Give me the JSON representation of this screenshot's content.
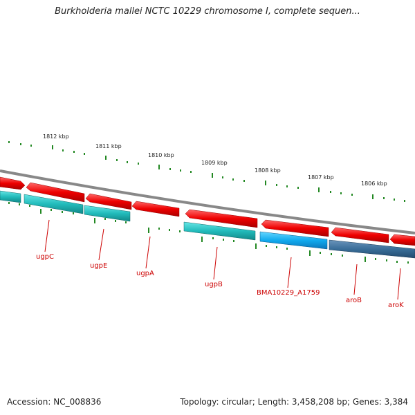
{
  "title": "Burkholderia mallei NCTC 10229 chromosome I, complete sequen...",
  "footer": {
    "accession": "Accession: NC_008836",
    "stats": "Topology: circular; Length: 3,458,208 bp; Genes: 3,384"
  },
  "scale": {
    "unit": "kbp",
    "labels": [
      "1812 kbp",
      "1811 kbp",
      "1810 kbp",
      "1809 kbp",
      "1808 kbp",
      "1807 kbp",
      "1806 kbp"
    ]
  },
  "genes": {
    "labels": [
      "ugpC",
      "ugpE",
      "ugpA",
      "ugpB",
      "BMA10229_A1759",
      "aroB",
      "aroK"
    ]
  },
  "colors": {
    "forward_feature": "#ee0000",
    "reverse_feature_cyan": "#22cccc",
    "reverse_feature_blue": "#11aaee",
    "reverse_feature_steel": "#3a6e99",
    "backbone": "#888888",
    "ticks": "#228822",
    "gene_label": "#cc0000"
  }
}
